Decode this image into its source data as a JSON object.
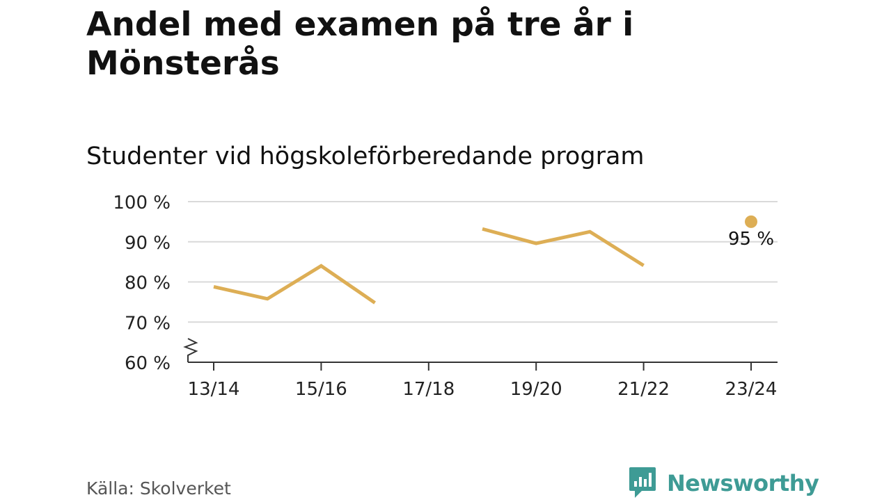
{
  "title": "Andel med examen på tre år i Mönsterås",
  "subtitle": "Studenter vid högskoleförberedande program",
  "source": "Källa: Skolverket",
  "brand": {
    "name": "Newsworthy",
    "icon": "newsworthy-logo-icon",
    "color": "#3e9b95"
  },
  "chart_data": {
    "type": "line",
    "categories": [
      "13/14",
      "14/15",
      "15/16",
      "16/17",
      "17/18",
      "18/19",
      "19/20",
      "20/21",
      "21/22",
      "22/23",
      "23/24"
    ],
    "x_tick_labels": [
      "13/14",
      "15/16",
      "17/18",
      "19/20",
      "21/22",
      "23/24"
    ],
    "series": [
      {
        "values": [
          78.8,
          75.8,
          84.0,
          74.8,
          null,
          93.2,
          89.6,
          92.5,
          84.1,
          null,
          95.0
        ],
        "color": "#ddae55"
      }
    ],
    "ylim": [
      60,
      100
    ],
    "y_ticks": [
      60,
      70,
      80,
      90,
      100
    ],
    "y_tick_labels": [
      "60 %",
      "70 %",
      "80 %",
      "90 %",
      "100 %"
    ],
    "axis_break": true,
    "grid": true,
    "annotations": [
      {
        "category": "23/24",
        "value": 95.0,
        "label": "95 %"
      }
    ]
  }
}
